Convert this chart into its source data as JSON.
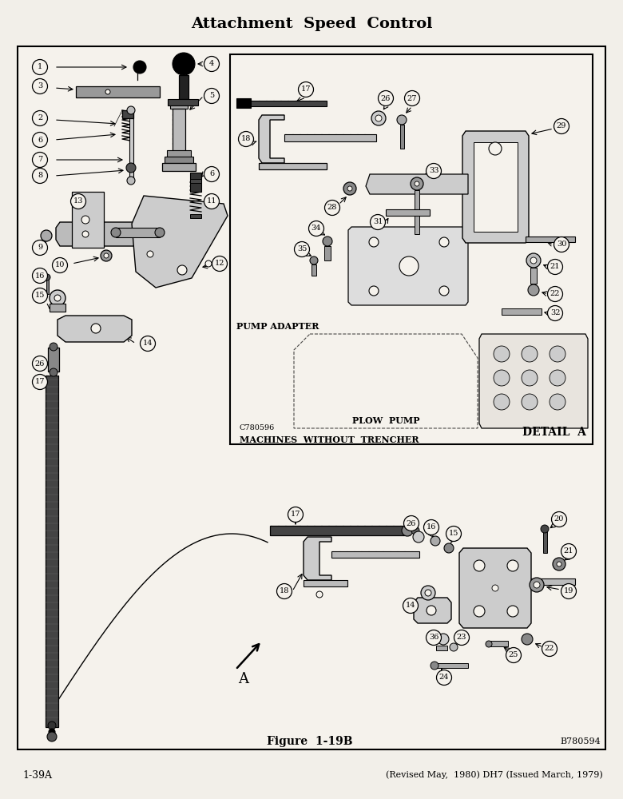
{
  "title": "Attachment  Speed  Control",
  "figure_label": "Figure  1-19B",
  "figure_number_right": "B780594",
  "page_ref_left": "1-39A",
  "page_ref_right": "(Revised May,  1980) DH7 (Issued March, 1979)",
  "bg_color": "#f2efe9",
  "paper_color": "#f5f2ec",
  "detail_box_label": "DETAIL  A",
  "detail_box_text1": "PUMP ADAPTER",
  "detail_box_text2": "PLOW  PUMP",
  "detail_box_text3": "MACHINES  WITHOUT  TRENCHER",
  "catalog_num": "C780596",
  "arrow_label": "A",
  "border_lw": 1.5
}
